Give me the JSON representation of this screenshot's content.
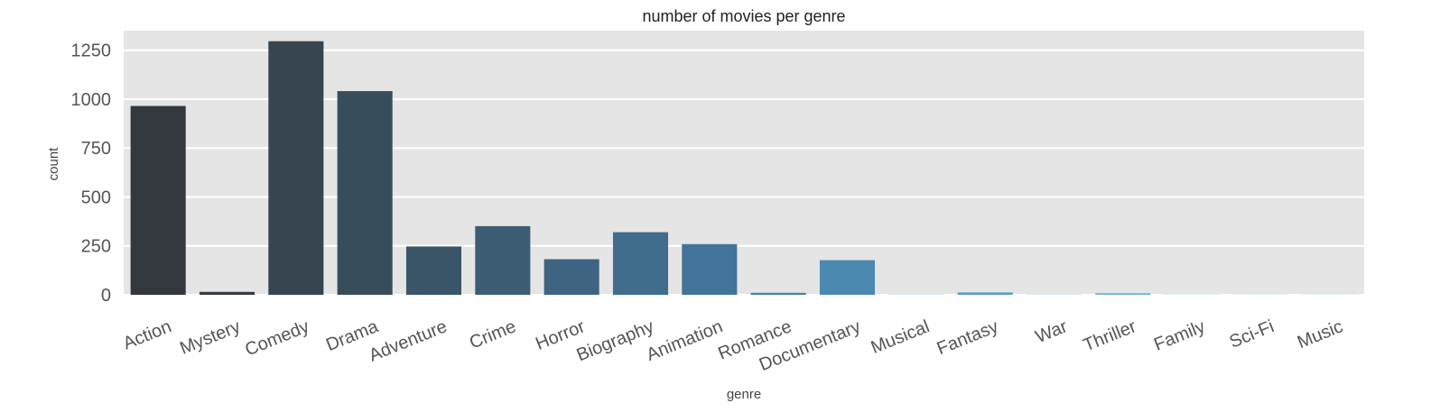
{
  "chart_data": {
    "type": "bar",
    "title": "number of movies per genre",
    "xlabel": "genre",
    "ylabel": "count",
    "categories": [
      "Action",
      "Mystery",
      "Comedy",
      "Drama",
      "Adventure",
      "Crime",
      "Horror",
      "Biography",
      "Animation",
      "Romance",
      "Documentary",
      "Musical",
      "Fantasy",
      "War",
      "Thriller",
      "Family",
      "Sci-Fi",
      "Music"
    ],
    "values": [
      965,
      15,
      1296,
      1041,
      247,
      351,
      182,
      320,
      259,
      10,
      177,
      1,
      12,
      1,
      8,
      1,
      1,
      1
    ],
    "ylim": [
      0,
      1350
    ],
    "yticks": [
      0,
      250,
      500,
      750,
      1000,
      1250
    ],
    "grid": true,
    "colors": [
      "#33373e",
      "#343c45",
      "#36454f",
      "#384d5b",
      "#3a5568",
      "#3c5d74",
      "#3e6481",
      "#406c8d",
      "#427499",
      "#4480a5",
      "#4a8ab0",
      "#5294bb",
      "#5a9dc3",
      "#63a6cb",
      "#6cafd2",
      "#76b7d8",
      "#80c0de",
      "#8ac8e4"
    ],
    "background": "#e5e5e5"
  }
}
